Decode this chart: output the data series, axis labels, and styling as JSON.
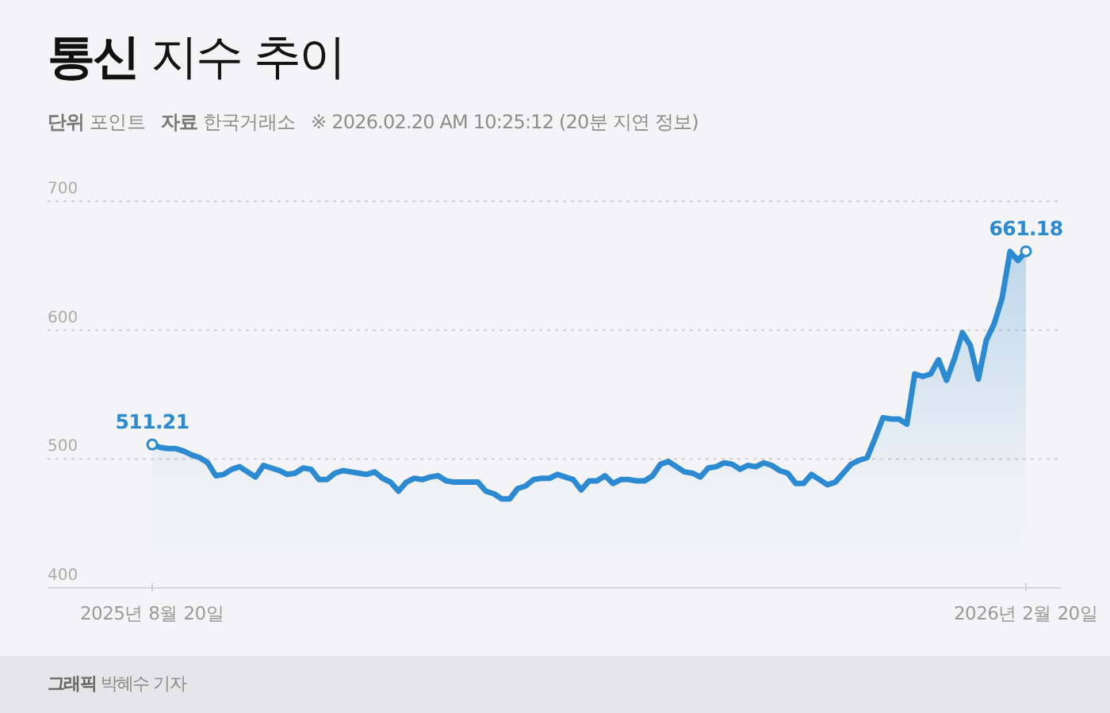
{
  "chart_data": {
    "type": "area",
    "title": "통신 지수 추이",
    "subtitle": "단위 포인트",
    "annotations": [
      "자료 한국거래소",
      "※ 2026.02.20 AM 10:25:12 (20분 지연 정보)",
      "그래픽 박혜수 기자"
    ],
    "categories": [
      "2025년 8월 20일",
      null,
      null,
      null,
      null,
      null,
      null,
      null,
      null,
      null,
      null,
      null,
      null,
      null,
      null,
      null,
      null,
      null,
      null,
      null,
      null,
      null,
      null,
      null,
      null,
      null,
      null,
      null,
      null,
      null,
      null,
      null,
      null,
      null,
      null,
      null,
      null,
      null,
      null,
      null,
      null,
      null,
      null,
      null,
      null,
      null,
      null,
      null,
      null,
      null,
      null,
      null,
      null,
      null,
      null,
      null,
      null,
      null,
      null,
      null,
      null,
      null,
      null,
      null,
      null,
      null,
      null,
      null,
      null,
      null,
      null,
      null,
      null,
      null,
      null,
      null,
      null,
      null,
      null,
      null,
      null,
      null,
      null,
      null,
      null,
      null,
      null,
      null,
      null,
      null,
      null,
      null,
      null,
      null,
      null,
      null,
      null,
      null,
      null,
      null,
      null,
      null,
      null,
      null,
      null,
      null,
      null,
      null,
      null,
      null,
      "2026년 2월 20일"
    ],
    "values": [
      511.21,
      509,
      508,
      508,
      506,
      503,
      501,
      497,
      487,
      488,
      492,
      494,
      490,
      486,
      495,
      493,
      491,
      488,
      489,
      493,
      492,
      484,
      484,
      489,
      491,
      490,
      489,
      488,
      490,
      485,
      482,
      475,
      482,
      485,
      484,
      486,
      487,
      483,
      482,
      482,
      482,
      482,
      475,
      473,
      469,
      469,
      477,
      479,
      484,
      485,
      485,
      488,
      486,
      484,
      476,
      483,
      483,
      487,
      481,
      484,
      484,
      483,
      483,
      487,
      496,
      498,
      494,
      490,
      489,
      486,
      493,
      494,
      497,
      496,
      492,
      495,
      494,
      497,
      495,
      491,
      489,
      481,
      481,
      488,
      484,
      480,
      482,
      489,
      496,
      499,
      501,
      516,
      532,
      531,
      531,
      527,
      566,
      564,
      566,
      577,
      561,
      578,
      598,
      588,
      562,
      592,
      605,
      625,
      661,
      654,
      661.18
    ],
    "value_labels": [
      "511.21",
      null,
      null,
      null,
      null,
      null,
      null,
      null,
      null,
      null,
      null,
      null,
      null,
      null,
      null,
      null,
      null,
      null,
      null,
      null,
      null,
      null,
      null,
      null,
      null,
      null,
      null,
      null,
      null,
      null,
      null,
      null,
      null,
      null,
      null,
      null,
      null,
      null,
      null,
      null,
      null,
      null,
      null,
      null,
      null,
      null,
      null,
      null,
      null,
      null,
      null,
      null,
      null,
      null,
      null,
      null,
      null,
      null,
      null,
      null,
      null,
      null,
      null,
      null,
      null,
      null,
      null,
      null,
      null,
      null,
      null,
      null,
      null,
      null,
      null,
      null,
      null,
      null,
      null,
      null,
      null,
      null,
      null,
      null,
      null,
      null,
      null,
      null,
      null,
      null,
      null,
      null,
      null,
      null,
      null,
      null,
      null,
      null,
      null,
      null,
      null,
      null,
      null,
      null,
      null,
      null,
      null,
      null,
      null,
      null,
      "661.18"
    ],
    "color": "#2b8ad1",
    "ylim": [
      400,
      700
    ],
    "yticks": [
      400,
      500,
      600,
      700
    ],
    "grid": "y"
  }
}
